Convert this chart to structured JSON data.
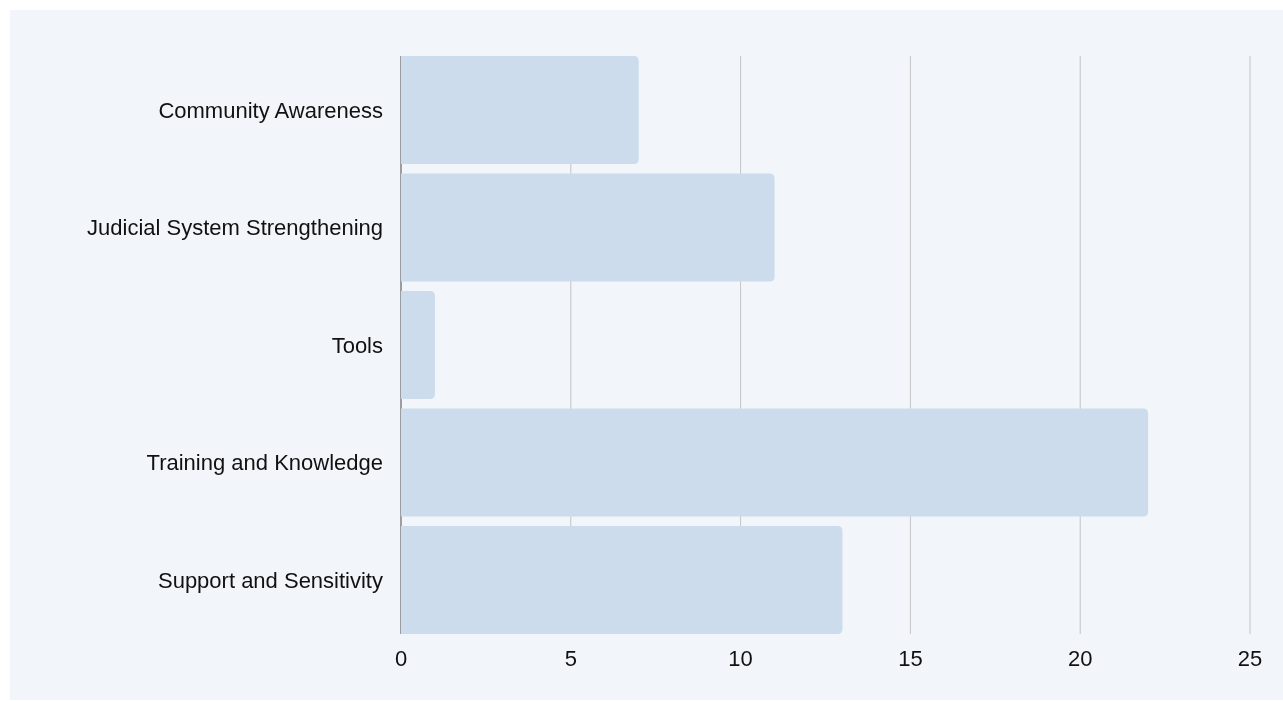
{
  "chart_data": {
    "type": "bar",
    "orientation": "horizontal",
    "categories": [
      "Community Awareness",
      "Judicial System Strengthening",
      "Tools",
      "Training and Knowledge",
      "Support and Sensitivity"
    ],
    "values": [
      7,
      11,
      1,
      22,
      13
    ],
    "color": "#ccdcec",
    "xlim": [
      0,
      25
    ],
    "xticks": [
      0,
      5,
      10,
      15,
      20,
      25
    ],
    "grid": "x"
  }
}
